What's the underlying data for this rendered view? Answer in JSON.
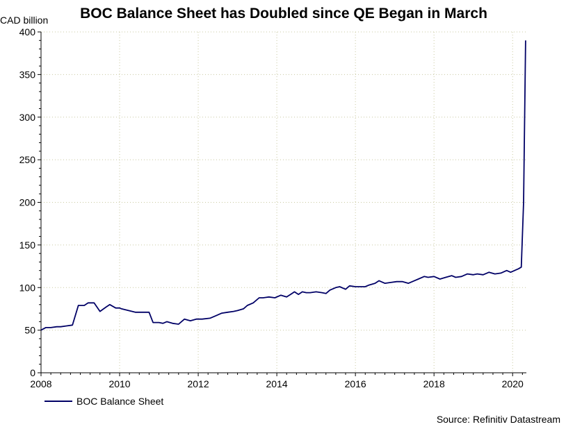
{
  "chart_data": {
    "type": "line",
    "title": "BOC Balance Sheet has Doubled since QE Began in March",
    "ylabel": "CAD billion",
    "xlabel": "",
    "ylim": [
      0,
      400
    ],
    "xlim": [
      2008,
      2020.35
    ],
    "yticks": [
      0,
      50,
      100,
      150,
      200,
      250,
      300,
      350,
      400
    ],
    "xticks": [
      2008,
      2010,
      2012,
      2014,
      2016,
      2018,
      2020
    ],
    "grid": true,
    "legend_position": "bottom-left",
    "source": "Source: Refinitiv Datastream",
    "series": [
      {
        "name": "BOC Balance Sheet",
        "color": "#000066",
        "x": [
          2008.0,
          2008.12,
          2008.25,
          2008.4,
          2008.5,
          2008.65,
          2008.8,
          2008.95,
          2009.1,
          2009.2,
          2009.35,
          2009.5,
          2009.65,
          2009.75,
          2009.9,
          2010.0,
          2010.05,
          2010.4,
          2010.5,
          2010.55,
          2010.75,
          2010.85,
          2011.0,
          2011.1,
          2011.2,
          2011.35,
          2011.5,
          2011.65,
          2011.8,
          2011.95,
          2012.1,
          2012.3,
          2012.45,
          2012.6,
          2012.75,
          2012.9,
          2013.0,
          2013.15,
          2013.25,
          2013.4,
          2013.55,
          2013.65,
          2013.8,
          2013.95,
          2014.1,
          2014.25,
          2014.35,
          2014.45,
          2014.55,
          2014.65,
          2014.75,
          2014.85,
          2015.0,
          2015.15,
          2015.25,
          2015.35,
          2015.5,
          2015.6,
          2015.75,
          2015.85,
          2016.0,
          2016.1,
          2016.25,
          2016.35,
          2016.5,
          2016.6,
          2016.75,
          2016.9,
          2017.05,
          2017.2,
          2017.35,
          2017.5,
          2017.6,
          2017.75,
          2017.85,
          2018.0,
          2018.15,
          2018.3,
          2018.45,
          2018.55,
          2018.7,
          2018.85,
          2019.0,
          2019.1,
          2019.25,
          2019.4,
          2019.55,
          2019.7,
          2019.85,
          2019.95,
          2020.05,
          2020.15,
          2020.22,
          2020.28,
          2020.33
        ],
        "values": [
          50,
          53,
          53,
          54,
          54,
          55,
          56,
          79,
          79,
          82,
          82,
          72,
          77,
          80,
          76,
          76,
          75,
          71,
          71,
          71,
          71,
          59,
          59,
          58,
          60,
          58,
          57,
          63,
          61,
          63,
          63,
          64,
          67,
          70,
          71,
          72,
          73,
          75,
          79,
          82,
          88,
          88,
          89,
          88,
          91,
          89,
          92,
          95,
          92,
          95,
          94,
          94,
          95,
          94,
          93,
          97,
          100,
          101,
          98,
          102,
          101,
          101,
          101,
          103,
          105,
          108,
          105,
          106,
          107,
          107,
          105,
          108,
          110,
          113,
          112,
          113,
          110,
          112,
          114,
          112,
          113,
          116,
          115,
          116,
          115,
          118,
          116,
          117,
          120,
          118,
          120,
          122,
          124,
          200,
          390
        ]
      }
    ]
  }
}
